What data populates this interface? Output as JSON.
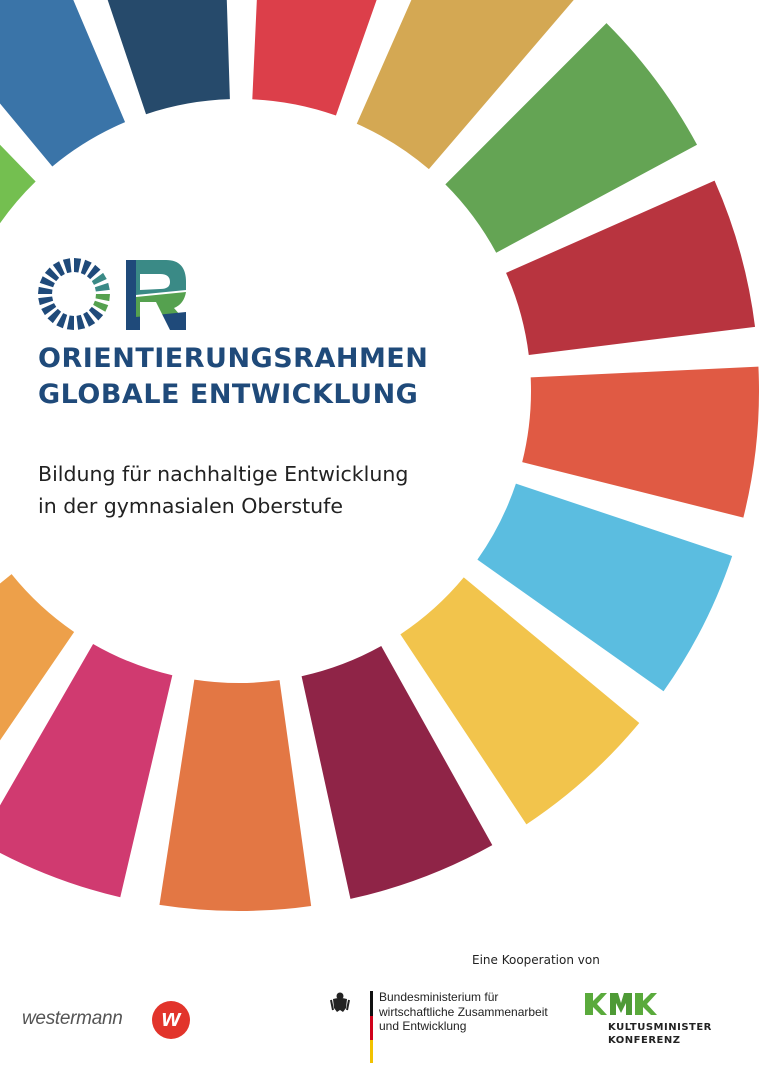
{
  "wheel": {
    "segment_colors": [
      "#dc3f4a",
      "#d4a853",
      "#64a454",
      "#b8343f",
      "#e05a44",
      "#5bbde0",
      "#f2c44c",
      "#8f2447",
      "#e37744",
      "#d03a70",
      "#eda04a",
      "#c8963c",
      "#3f7e44",
      "#3a74a8",
      "#74bf50",
      "#3a74a8",
      "#264a6b"
    ]
  },
  "logo": {
    "letters": "OR",
    "colors": {
      "navy": "#1f4a7a",
      "teal": "#3a8a86",
      "green": "#55a14f"
    }
  },
  "title": {
    "line1": "ORIENTIERUNGSRAHMEN",
    "line2": "GLOBALE  ENTWICKLUNG"
  },
  "subtitle": {
    "line1": "Bildung für nachhaltige Entwicklung",
    "line2": "in der gymnasialen Oberstufe"
  },
  "footer": {
    "cooperation_label": "Eine Kooperation von",
    "publisher": {
      "name": "westermann",
      "logo_letter": "w"
    },
    "bmz": {
      "line1": "Bundesministerium für",
      "line2": "wirtschaftliche Zusammenarbeit",
      "line3": "und Entwicklung"
    },
    "kmk": {
      "line1": "KULTUSMINISTER",
      "line2": "KONFERENZ"
    }
  }
}
